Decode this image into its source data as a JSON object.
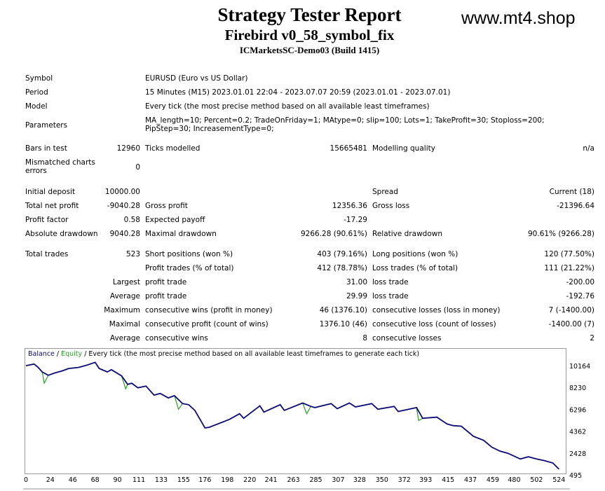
{
  "header": {
    "title": "Strategy Tester Report",
    "ea_name": "Firebird v0_58_symbol_fix",
    "server": "ICMarketsSC-Demo03 (Build 1415)",
    "site": "www.mt4.shop"
  },
  "info": {
    "symbol_label": "Symbol",
    "symbol_value": "EURUSD (Euro vs US Dollar)",
    "period_label": "Period",
    "period_value": "15 Minutes (M15) 2023.01.01 22:04 - 2023.07.07 20:59 (2023.01.01 - 2023.07.01)",
    "model_label": "Model",
    "model_value": "Every tick (the most precise method based on all available least timeframes)",
    "parameters_label": "Parameters",
    "parameters_value": "MA_length=10; Percent=0.2; TradeOnFriday=1; MAtype=0; slip=100; Lots=1; TakeProfit=30; Stoploss=200; PipStep=30; IncreasementType=0;"
  },
  "stats": {
    "bars_label": "Bars in test",
    "bars_value": "12960",
    "ticks_label": "Ticks modelled",
    "ticks_value": "15665481",
    "quality_label": "Modelling quality",
    "quality_value": "n/a",
    "mismatch_label": "Mismatched charts errors",
    "mismatch_value": "0",
    "deposit_label": "Initial deposit",
    "deposit_value": "10000.00",
    "spread_label": "Spread",
    "spread_value": "Current (18)",
    "netprofit_label": "Total net profit",
    "netprofit_value": "-9040.28",
    "grossprofit_label": "Gross profit",
    "grossprofit_value": "12356.36",
    "grossloss_label": "Gross loss",
    "grossloss_value": "-21396.64",
    "pf_label": "Profit factor",
    "pf_value": "0.58",
    "ep_label": "Expected payoff",
    "ep_value": "-17.29",
    "absdd_label": "Absolute drawdown",
    "absdd_value": "9040.28",
    "maxdd_label": "Maximal drawdown",
    "maxdd_value": "9266.28 (90.61%)",
    "reldd_label": "Relative drawdown",
    "reldd_value": "90.61% (9266.28)",
    "trades_label": "Total trades",
    "trades_value": "523",
    "short_label": "Short positions (won %)",
    "short_value": "403 (79.16%)",
    "long_label": "Long positions (won %)",
    "long_value": "120 (77.50%)",
    "profittrades_label": "Profit trades (% of total)",
    "profittrades_value": "412 (78.78%)",
    "losstrades_label": "Loss trades (% of total)",
    "losstrades_value": "111 (21.22%)",
    "largest_label": "Largest",
    "largest_profit_label": "profit trade",
    "largest_profit_value": "31.00",
    "largest_loss_label": "loss trade",
    "largest_loss_value": "-200.00",
    "average_label": "Average",
    "average_profit_label": "profit trade",
    "average_profit_value": "29.99",
    "average_loss_label": "loss trade",
    "average_loss_value": "-192.76",
    "maximum_label": "Maximum",
    "max_wins_label": "consecutive wins (profit in money)",
    "max_wins_value": "46 (1376.10)",
    "max_losses_label": "consecutive losses (loss in money)",
    "max_losses_value": "7 (-1400.00)",
    "maximal_label": "Maximal",
    "maximal_profit_label": "consecutive profit (count of wins)",
    "maximal_profit_value": "1376.10 (46)",
    "maximal_loss_label": "consecutive loss (count of losses)",
    "maximal_loss_value": "-1400.00 (7)",
    "avg2_label": "Average",
    "avg_wins_label": "consecutive wins",
    "avg_wins_value": "8",
    "avg_losses_label": "consecutive losses",
    "avg_losses_value": "2"
  },
  "chart_legend": {
    "balance": "Balance",
    "sep1": " / ",
    "equity": "Equity",
    "rest": " / Every tick (the most precise method based on all available least timeframes to generate each tick)"
  },
  "chart_data": {
    "type": "line",
    "title": "",
    "xlabel": "",
    "ylabel": "",
    "xlim": [
      0,
      530
    ],
    "ylim": [
      495,
      10900
    ],
    "yticks": [
      10164,
      8230,
      6296,
      4362,
      2428,
      495
    ],
    "xticks": [
      0,
      24,
      46,
      68,
      90,
      111,
      133,
      155,
      176,
      198,
      220,
      241,
      263,
      285,
      307,
      328,
      350,
      372,
      393,
      415,
      437,
      459,
      480,
      502,
      524
    ],
    "colors": {
      "balance": "#0a0a78",
      "equity": "#2e9a2e"
    },
    "series": [
      {
        "name": "Balance",
        "x": [
          0,
          8,
          12,
          16,
          22,
          28,
          36,
          42,
          52,
          60,
          68,
          72,
          80,
          84,
          94,
          100,
          104,
          110,
          118,
          126,
          132,
          140,
          146,
          154,
          160,
          166,
          176,
          180,
          200,
          210,
          214,
          230,
          234,
          250,
          254,
          272,
          280,
          284,
          300,
          306,
          318,
          324,
          340,
          346,
          362,
          366,
          384,
          390,
          404,
          414,
          420,
          428,
          440,
          450,
          458,
          466,
          474,
          486,
          494,
          502,
          510,
          518,
          524
        ],
        "y": [
          10150,
          10300,
          10000,
          9600,
          9300,
          9500,
          9700,
          9900,
          10000,
          10200,
          10450,
          9900,
          9600,
          9800,
          9250,
          8500,
          8600,
          8200,
          8350,
          7550,
          7700,
          7300,
          7500,
          6800,
          6700,
          6200,
          4650,
          4700,
          5400,
          5900,
          5500,
          6600,
          6050,
          6700,
          6200,
          6850,
          6550,
          6450,
          6800,
          6350,
          6850,
          6500,
          6800,
          6300,
          6550,
          6100,
          6450,
          5500,
          5600,
          5000,
          4850,
          4800,
          3900,
          3550,
          2950,
          2600,
          2400,
          1900,
          2100,
          1900,
          1750,
          1550,
          1000
        ]
      },
      {
        "name": "Equity",
        "x": [
          0,
          8,
          12,
          16,
          18,
          22,
          28,
          36,
          42,
          52,
          60,
          68,
          72,
          80,
          84,
          94,
          98,
          100,
          104,
          110,
          118,
          126,
          132,
          140,
          146,
          150,
          154,
          160,
          166,
          176,
          180,
          200,
          210,
          214,
          230,
          234,
          250,
          254,
          272,
          276,
          280,
          284,
          300,
          306,
          318,
          324,
          340,
          346,
          362,
          366,
          384,
          386,
          390,
          404,
          414,
          420,
          428,
          440,
          450,
          458,
          466,
          474,
          486,
          494,
          502,
          510,
          518,
          524
        ],
        "y": [
          10150,
          10300,
          10000,
          9600,
          8600,
          9300,
          9500,
          9700,
          9900,
          10000,
          10200,
          10450,
          9900,
          9600,
          9800,
          9250,
          8100,
          8500,
          8600,
          8200,
          8350,
          7550,
          7700,
          7300,
          7500,
          6300,
          6800,
          6700,
          6200,
          4650,
          4700,
          5400,
          5900,
          5500,
          6600,
          6050,
          6700,
          6200,
          6850,
          5900,
          6550,
          6450,
          6800,
          6350,
          6850,
          6500,
          6800,
          6300,
          6550,
          6100,
          6450,
          5300,
          5500,
          5600,
          5000,
          4850,
          4800,
          3900,
          3550,
          2950,
          2600,
          2400,
          1900,
          2100,
          1900,
          1750,
          1550,
          1000
        ]
      }
    ]
  }
}
